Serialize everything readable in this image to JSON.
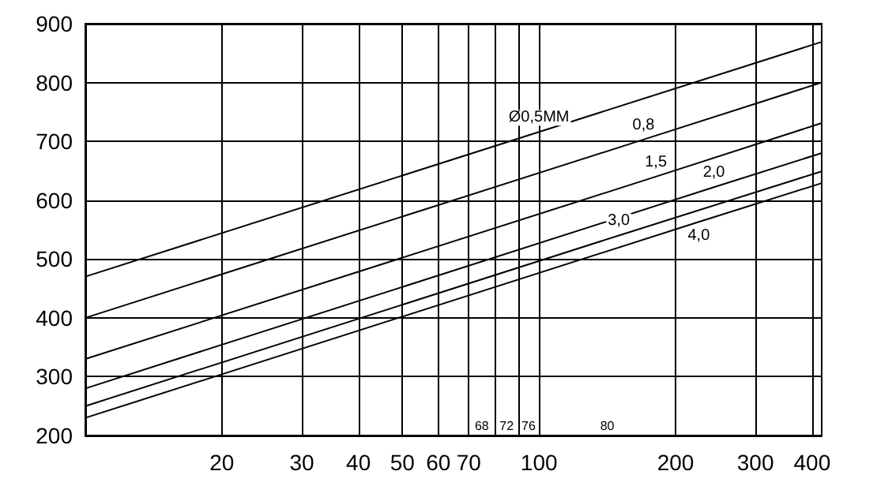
{
  "chart_data": {
    "type": "line",
    "log": "x",
    "grid": true,
    "legend": false,
    "marker": "none",
    "line_style": "solid",
    "xlim": [
      10,
      420
    ],
    "ylim": [
      200,
      900
    ],
    "xticks": [
      20,
      30,
      40,
      50,
      60,
      70,
      {
        "value": 80,
        "label": null
      },
      {
        "value": 90,
        "label": null
      },
      100,
      200,
      300,
      400
    ],
    "yticks": [
      200,
      300,
      400,
      500,
      600,
      700,
      800,
      900
    ],
    "series": [
      {
        "name": "Ø0,5MM",
        "color": "#000000",
        "x": [
          10,
          100,
          420
        ],
        "values": [
          470,
          716,
          869
        ]
      },
      {
        "name": "0,8",
        "color": "#000000",
        "x": [
          10,
          170,
          420
        ],
        "values": [
          400,
          703,
          800
        ]
      },
      {
        "name": "1,5",
        "color": "#000000",
        "x": [
          10,
          181,
          420
        ],
        "values": [
          330,
          640,
          731
        ]
      },
      {
        "name": "2,0",
        "color": "#000000",
        "x": [
          10,
          243,
          420
        ],
        "values": [
          280,
          622,
          680
        ]
      },
      {
        "name": "3,0",
        "color": "#000000",
        "x": [
          10,
          150,
          420
        ],
        "values": [
          250,
          540,
          649
        ]
      },
      {
        "name": "4,0",
        "color": "#000000",
        "x": [
          10,
          225,
          420
        ],
        "values": [
          230,
          563,
          629
        ]
      }
    ],
    "annotations": [
      "68",
      "72",
      "76",
      "80"
    ]
  }
}
